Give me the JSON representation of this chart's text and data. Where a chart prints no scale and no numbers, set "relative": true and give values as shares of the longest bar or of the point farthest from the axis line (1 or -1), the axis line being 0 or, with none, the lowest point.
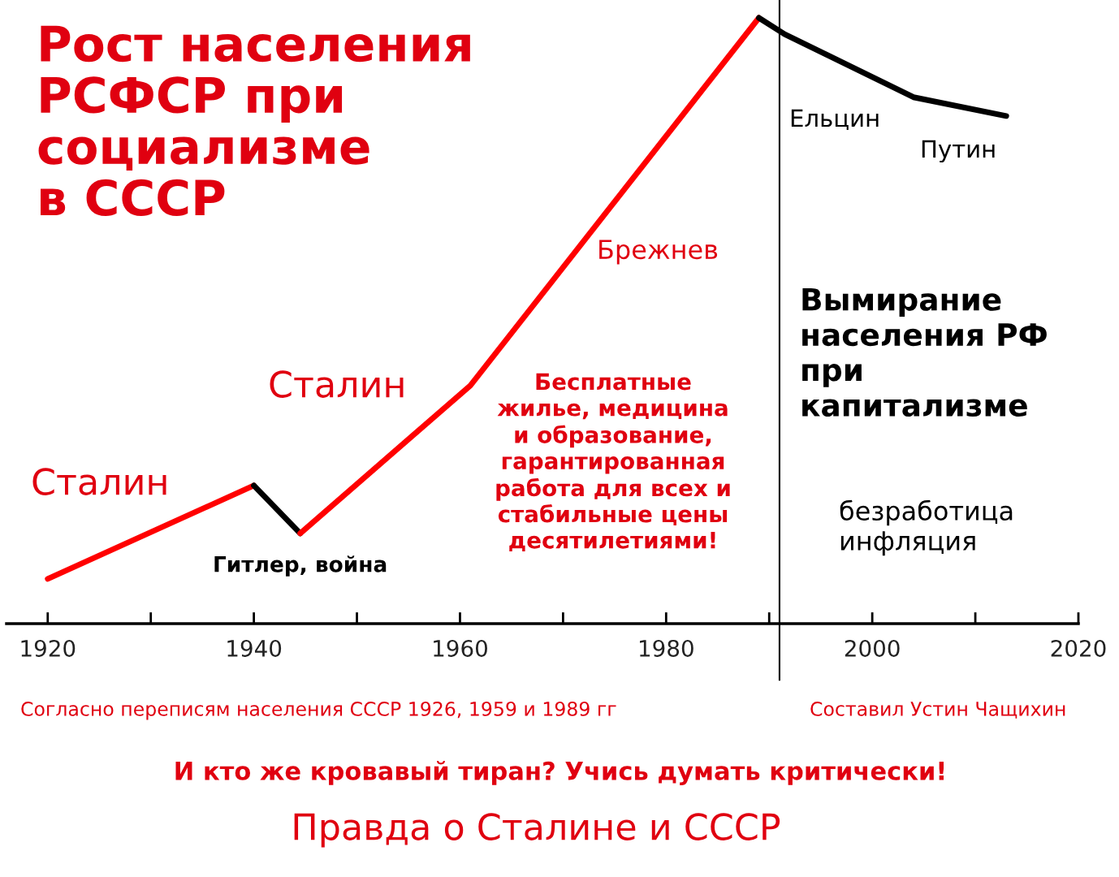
{
  "chart_data": {
    "type": "line",
    "relative": true,
    "title": "Рост населения\nРСФСР при\nсоциализме\nв СССР",
    "xlim": [
      1916,
      2020
    ],
    "xticks": [
      1920,
      {
        "value": 1930,
        "label": null
      },
      1940,
      {
        "value": 1950,
        "label": null
      },
      1960,
      {
        "value": 1970,
        "label": null
      },
      1980,
      {
        "value": 1990,
        "label": null
      },
      2000,
      {
        "value": 2010,
        "label": null
      },
      2020
    ],
    "series": [
      {
        "color": "#ff0000",
        "x": [
          1920,
          1940
        ],
        "values": [
          0.074,
          0.228
        ]
      },
      {
        "color": "#000000",
        "x": [
          1940,
          1944.5
        ],
        "values": [
          0.228,
          0.149
        ]
      },
      {
        "color": "#ff0000",
        "x": [
          1944.5,
          1961,
          1989
        ],
        "values": [
          0.149,
          0.393,
          1.0
        ]
      },
      {
        "color": "#000000",
        "x": [
          1989,
          1991.5,
          2004,
          2013
        ],
        "values": [
          1.0,
          0.973,
          0.869,
          0.838
        ]
      }
    ],
    "ref_lines": [
      {
        "axis": "x",
        "value": 1991,
        "color": "#000000"
      }
    ],
    "annotations": [
      "Сталин",
      "Сталин",
      "Гитлер, война",
      "Брежнев",
      "Бесплатные\nжилье, медицина\nи образование,\nгарантированная\nработа для всех и\nстабильные цены\nдесятилетиями!",
      "Ельцин",
      "Путин",
      "Вымирание\nнаселения РФ\nпри\nкапитализме",
      "безработица\nинфляция",
      "Согласно переписям населения СССР 1926, 1959 и 1989 гг",
      "Составил Устин Чащихин",
      "И кто же кровавый тиран? Учись думать критически!",
      "Правда о Сталине и СССР"
    ]
  }
}
